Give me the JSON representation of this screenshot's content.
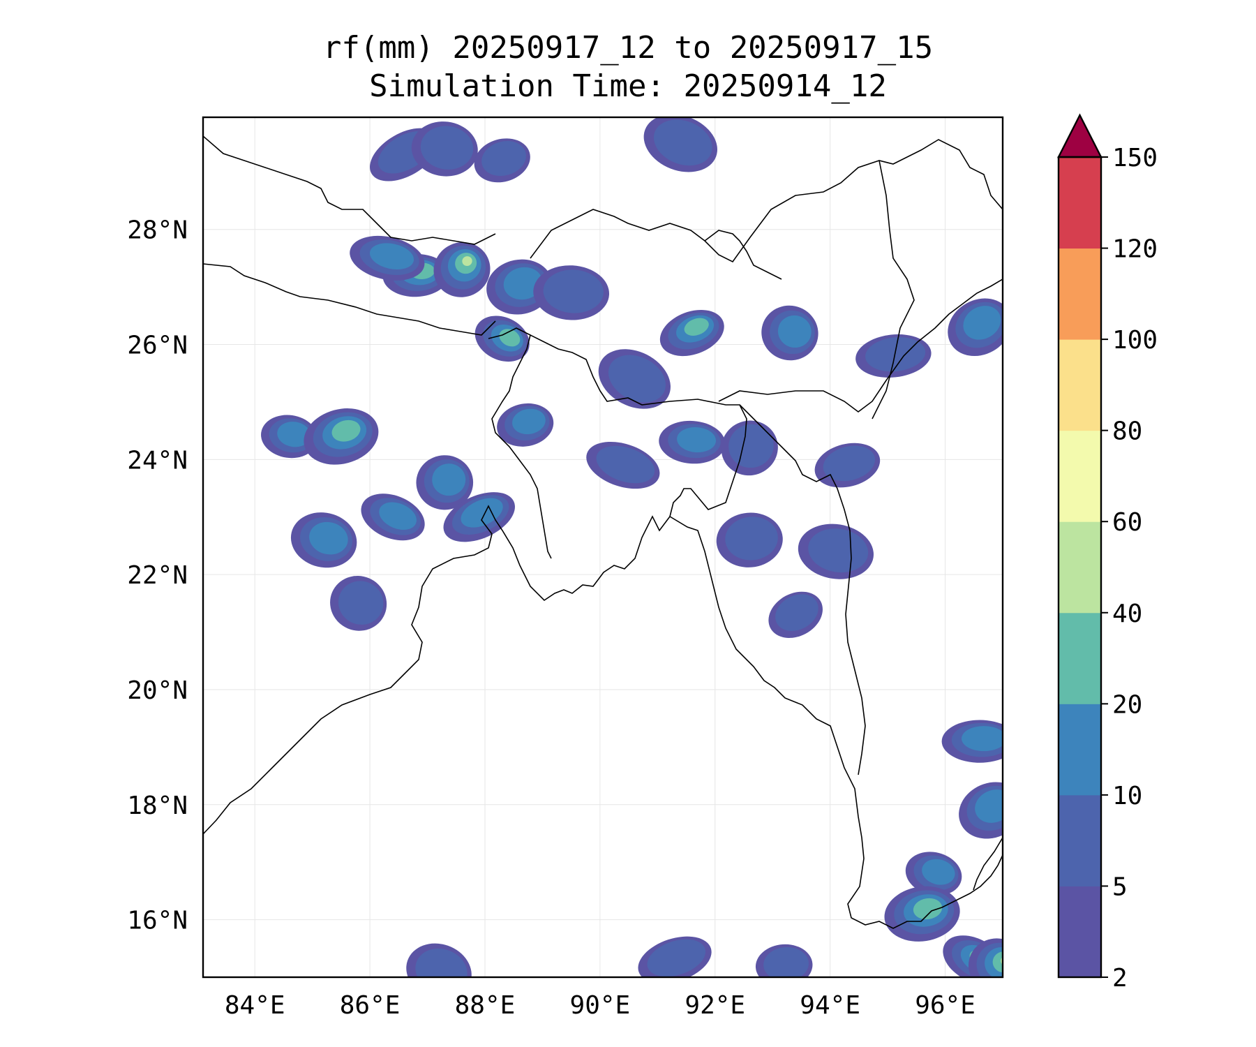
{
  "title": {
    "line1": "rf(mm) 20250917_12 to 20250917_15",
    "line2": "Simulation Time: 20250914_12"
  },
  "map": {
    "lon_range": [
      83.1,
      97
    ],
    "lat_range": [
      15,
      29.95
    ],
    "lon_ticks": [
      84,
      86,
      88,
      90,
      92,
      94,
      96
    ],
    "lat_ticks": [
      16,
      18,
      20,
      22,
      24,
      26,
      28
    ],
    "lon_tick_labels": [
      "84°E",
      "86°E",
      "88°E",
      "90°E",
      "92°E",
      "94°E",
      "96°E"
    ],
    "lat_tick_labels": [
      "16°N",
      "18°N",
      "20°N",
      "22°N",
      "24°N",
      "26°N",
      "28°N"
    ],
    "gridlines": true
  },
  "colorbar": {
    "levels": [
      2,
      5,
      10,
      20,
      40,
      60,
      80,
      100,
      120,
      150
    ],
    "tick_labels": [
      "2",
      "5",
      "10",
      "20",
      "40",
      "60",
      "80",
      "100",
      "120",
      "150"
    ],
    "colors": [
      "#5b54a4",
      "#4d64ad",
      "#3d84bc",
      "#62bcaa",
      "#bce4a0",
      "#f3faad",
      "#fbe08b",
      "#f89d59",
      "#d63f4f"
    ],
    "extend_color": "#9e0142",
    "extend": "max"
  },
  "rain_patches": [
    {
      "lon": 86.6,
      "lat": 29.3,
      "level": 1
    },
    {
      "lon": 87.3,
      "lat": 29.4,
      "level": 1
    },
    {
      "lon": 88.3,
      "lat": 29.2,
      "level": 1
    },
    {
      "lon": 91.4,
      "lat": 29.5,
      "level": 1
    },
    {
      "lon": 86.8,
      "lat": 27.2,
      "level": 3
    },
    {
      "lon": 87.6,
      "lat": 27.3,
      "level": 4
    },
    {
      "lon": 86.3,
      "lat": 27.5,
      "level": 2
    },
    {
      "lon": 88.6,
      "lat": 27.0,
      "level": 2
    },
    {
      "lon": 88.3,
      "lat": 26.1,
      "level": 3
    },
    {
      "lon": 89.5,
      "lat": 26.9,
      "level": 1
    },
    {
      "lon": 91.6,
      "lat": 26.2,
      "level": 3
    },
    {
      "lon": 93.3,
      "lat": 26.2,
      "level": 2
    },
    {
      "lon": 95.1,
      "lat": 25.8,
      "level": 1
    },
    {
      "lon": 96.6,
      "lat": 26.3,
      "level": 2
    },
    {
      "lon": 84.6,
      "lat": 24.4,
      "level": 2
    },
    {
      "lon": 85.5,
      "lat": 24.4,
      "level": 3
    },
    {
      "lon": 86.4,
      "lat": 23.0,
      "level": 2
    },
    {
      "lon": 87.3,
      "lat": 23.6,
      "level": 2
    },
    {
      "lon": 87.9,
      "lat": 23.0,
      "level": 2
    },
    {
      "lon": 85.2,
      "lat": 22.6,
      "level": 2
    },
    {
      "lon": 88.7,
      "lat": 24.6,
      "level": 2
    },
    {
      "lon": 90.6,
      "lat": 25.4,
      "level": 1
    },
    {
      "lon": 91.6,
      "lat": 24.3,
      "level": 2
    },
    {
      "lon": 92.6,
      "lat": 24.2,
      "level": 1
    },
    {
      "lon": 90.4,
      "lat": 23.9,
      "level": 1
    },
    {
      "lon": 92.6,
      "lat": 22.6,
      "level": 1
    },
    {
      "lon": 93.4,
      "lat": 21.3,
      "level": 1
    },
    {
      "lon": 94.1,
      "lat": 22.4,
      "level": 1
    },
    {
      "lon": 94.3,
      "lat": 23.9,
      "level": 1
    },
    {
      "lon": 85.8,
      "lat": 21.5,
      "level": 1
    },
    {
      "lon": 96.6,
      "lat": 19.1,
      "level": 2
    },
    {
      "lon": 96.8,
      "lat": 17.9,
      "level": 2
    },
    {
      "lon": 95.8,
      "lat": 16.8,
      "level": 2
    },
    {
      "lon": 95.6,
      "lat": 16.1,
      "level": 3
    },
    {
      "lon": 96.5,
      "lat": 15.3,
      "level": 3
    },
    {
      "lon": 96.9,
      "lat": 15.2,
      "level": 4
    },
    {
      "lon": 91.3,
      "lat": 15.3,
      "level": 1
    },
    {
      "lon": 87.2,
      "lat": 15.1,
      "level": 1
    },
    {
      "lon": 93.2,
      "lat": 15.2,
      "level": 1
    }
  ]
}
